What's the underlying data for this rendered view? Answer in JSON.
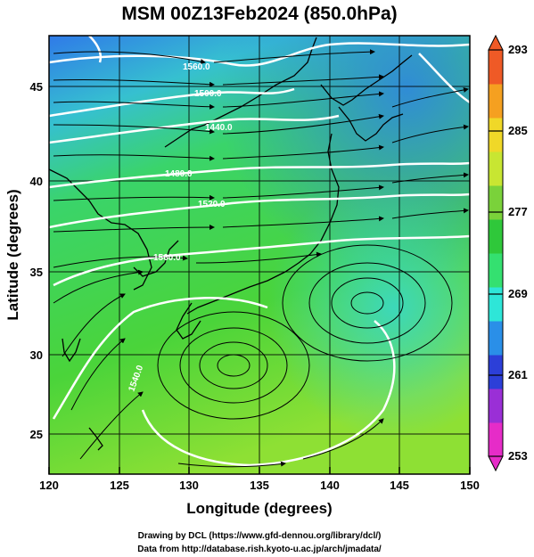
{
  "title": "MSM 00Z13Feb2024 (850.0hPa)",
  "x_axis": {
    "label": "Longitude (degrees)",
    "ticks": [
      "120",
      "125",
      "130",
      "135",
      "140",
      "145",
      "150"
    ]
  },
  "y_axis": {
    "label": "Latitude  (degrees)",
    "ticks": [
      "25",
      "30",
      "35",
      "40",
      "45"
    ]
  },
  "colorbar": {
    "min": 253,
    "max": 293,
    "labels": [
      "293",
      "285",
      "277",
      "269",
      "261",
      "253"
    ],
    "stops": [
      "#e62cc8",
      "#9a2fd6",
      "#2c3fd8",
      "#2a8fe8",
      "#2ee6d8",
      "#34e070",
      "#2fc83a",
      "#7ad23a",
      "#c8e632",
      "#f0d828",
      "#f5a020",
      "#ef5a26"
    ]
  },
  "contours": [
    {
      "text": "1560.0"
    },
    {
      "text": "1500.0"
    },
    {
      "text": "1440.0"
    },
    {
      "text": "1480.0"
    },
    {
      "text": "1520.0"
    },
    {
      "text": "1560.0"
    },
    {
      "text": "1540.0"
    }
  ],
  "credits": {
    "line1": "Drawing by DCL (https://www.gfd-dennou.org/library/dcl/)",
    "line2": "Data from http://database.rish.kyoto-u.ac.jp/arch/jmadata/"
  }
}
